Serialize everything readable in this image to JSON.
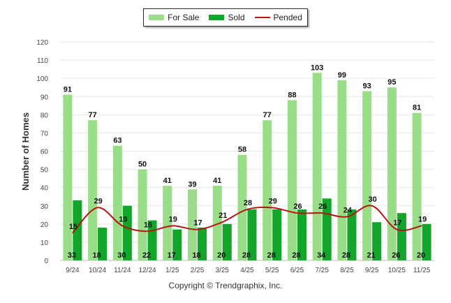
{
  "chart_data": {
    "type": "bar",
    "title": "",
    "xlabel": "",
    "ylabel": "Number of Homes",
    "ylim": [
      0,
      120
    ],
    "yticks": [
      "0",
      "10",
      "20",
      "30",
      "40",
      "50",
      "60",
      "70",
      "80",
      "90",
      "100",
      "110",
      "120"
    ],
    "grid": true,
    "legend_position": "top-center",
    "categories": [
      "9/24",
      "10/24",
      "11/24",
      "12/24",
      "1/25",
      "2/25",
      "3/25",
      "4/25",
      "5/25",
      "6/25",
      "7/25",
      "8/25",
      "9/25",
      "10/25",
      "11/25"
    ],
    "series": [
      {
        "name": "For Sale",
        "kind": "bar",
        "color": "#99dd88",
        "values": [
          91,
          77,
          63,
          50,
          41,
          39,
          41,
          58,
          77,
          88,
          103,
          99,
          93,
          95,
          81
        ]
      },
      {
        "name": "Sold",
        "kind": "bar",
        "color": "#11a52a",
        "values": [
          33,
          18,
          30,
          22,
          17,
          18,
          20,
          28,
          28,
          28,
          34,
          28,
          21,
          26,
          20
        ]
      },
      {
        "name": "Pended",
        "kind": "line",
        "color": "#b81414",
        "values": [
          15,
          29,
          19,
          16,
          19,
          17,
          21,
          28,
          29,
          26,
          26,
          24,
          30,
          17,
          19
        ]
      }
    ],
    "labels": {
      "for_sale": [
        "91",
        "77",
        "63",
        "50",
        "41",
        "39",
        "41",
        "58",
        "77",
        "88",
        "103",
        "99",
        "93",
        "95",
        "81"
      ],
      "sold": [
        "33",
        "18",
        "30",
        "22",
        "17",
        "18",
        "20",
        "28",
        "28",
        "28",
        "34",
        "28",
        "21",
        "26",
        "20"
      ],
      "pended": [
        "15",
        "29",
        "19",
        "16",
        "19",
        "17",
        "21",
        "28",
        "29",
        "26",
        "26",
        "24",
        "30",
        "17",
        "19"
      ]
    }
  },
  "legend": {
    "for_sale": "For Sale",
    "sold": "Sold",
    "pended": "Pended"
  },
  "colors": {
    "for_sale": "#99dd88",
    "sold": "#11a52a",
    "pended": "#b81414"
  },
  "footer": {
    "copyright": "Copyright © Trendgraphix, Inc."
  }
}
